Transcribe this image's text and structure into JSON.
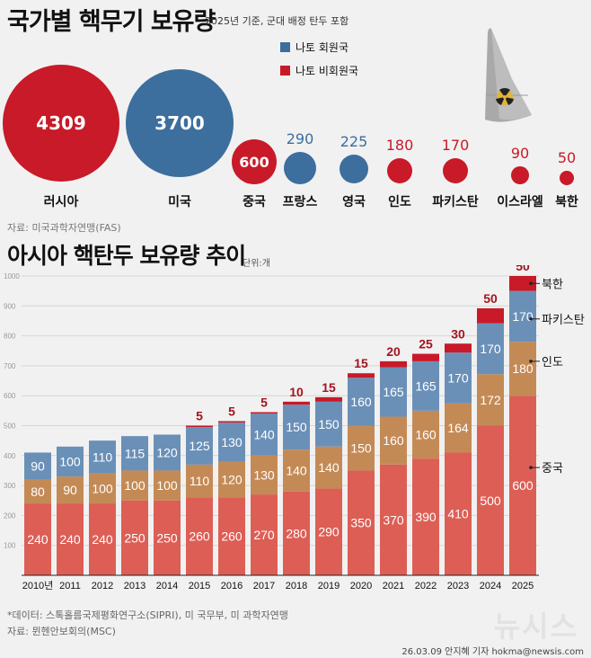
{
  "header": {
    "title": "국가별 핵무기 보유량",
    "subtitle": "2025년 기준, 군대 배정 탄두 포함"
  },
  "legend": [
    {
      "label": "나토 회원국",
      "color": "#3c6e9e"
    },
    {
      "label": "나토 비회원국",
      "color": "#c81a28"
    }
  ],
  "bubbles": [
    {
      "country": "러시아",
      "value": "4309",
      "group": "non-nato"
    },
    {
      "country": "미국",
      "value": "3700",
      "group": "nato"
    },
    {
      "country": "중국",
      "value": "600",
      "group": "non-nato"
    },
    {
      "country": "프랑스",
      "value": "290",
      "group": "nato"
    },
    {
      "country": "영국",
      "value": "225",
      "group": "nato"
    },
    {
      "country": "인도",
      "value": "180",
      "group": "non-nato"
    },
    {
      "country": "파키스탄",
      "value": "170",
      "group": "non-nato"
    },
    {
      "country": "이스라엘",
      "value": "90",
      "group": "non-nato"
    },
    {
      "country": "북한",
      "value": "50",
      "group": "non-nato"
    }
  ],
  "source1": "자료: 미국과학자연맹(FAS)",
  "section2": {
    "title": "아시아 핵탄두 보유량 추이",
    "unit": "단위:개"
  },
  "colors": {
    "nato": "#3c6e9e",
    "non_nato": "#c81a28",
    "china": "#dd5e55",
    "india": "#c48a55",
    "pakistan": "#6a90b8",
    "north_korea": "#c81a28",
    "nk_label": "#a31420"
  },
  "chart_data": {
    "type": "bar",
    "stacked": true,
    "title": "아시아 핵탄두 보유량 추이",
    "unit": "단위:개",
    "xlabel": "",
    "ylabel": "",
    "ylim": [
      0,
      1000
    ],
    "yticks": [
      100,
      200,
      300,
      400,
      500,
      600,
      700,
      800,
      900,
      1000
    ],
    "grid": true,
    "categories": [
      "2010년",
      "2011",
      "2012",
      "2013",
      "2014",
      "2015",
      "2016",
      "2017",
      "2018",
      "2019",
      "2020",
      "2021",
      "2022",
      "2023",
      "2024",
      "2025"
    ],
    "series": [
      {
        "name": "중국",
        "values": [
          240,
          240,
          240,
          250,
          250,
          260,
          260,
          270,
          280,
          290,
          350,
          370,
          390,
          410,
          500,
          600
        ]
      },
      {
        "name": "인도",
        "values": [
          80,
          90,
          100,
          100,
          100,
          110,
          120,
          130,
          140,
          140,
          150,
          160,
          160,
          164,
          172,
          180
        ]
      },
      {
        "name": "파키스탄",
        "values": [
          90,
          100,
          110,
          115,
          120,
          125,
          130,
          140,
          150,
          150,
          160,
          165,
          165,
          170,
          170,
          170
        ]
      },
      {
        "name": "북한",
        "values": [
          0,
          0,
          0,
          0,
          0,
          5,
          5,
          5,
          10,
          15,
          15,
          20,
          25,
          30,
          50,
          50
        ]
      }
    ],
    "legend": "right-of-last-bar"
  },
  "footer": {
    "data_note": "*데이터: 스톡홀름국제평화연구소(SIPRI), 미 국무부, 미 과학자연맹",
    "source": "자료: 뮌헨안보회의(MSC)",
    "watermark": "뉴시스",
    "credit": "26.03.09 안지혜 기자 hokma@newsis.com"
  }
}
